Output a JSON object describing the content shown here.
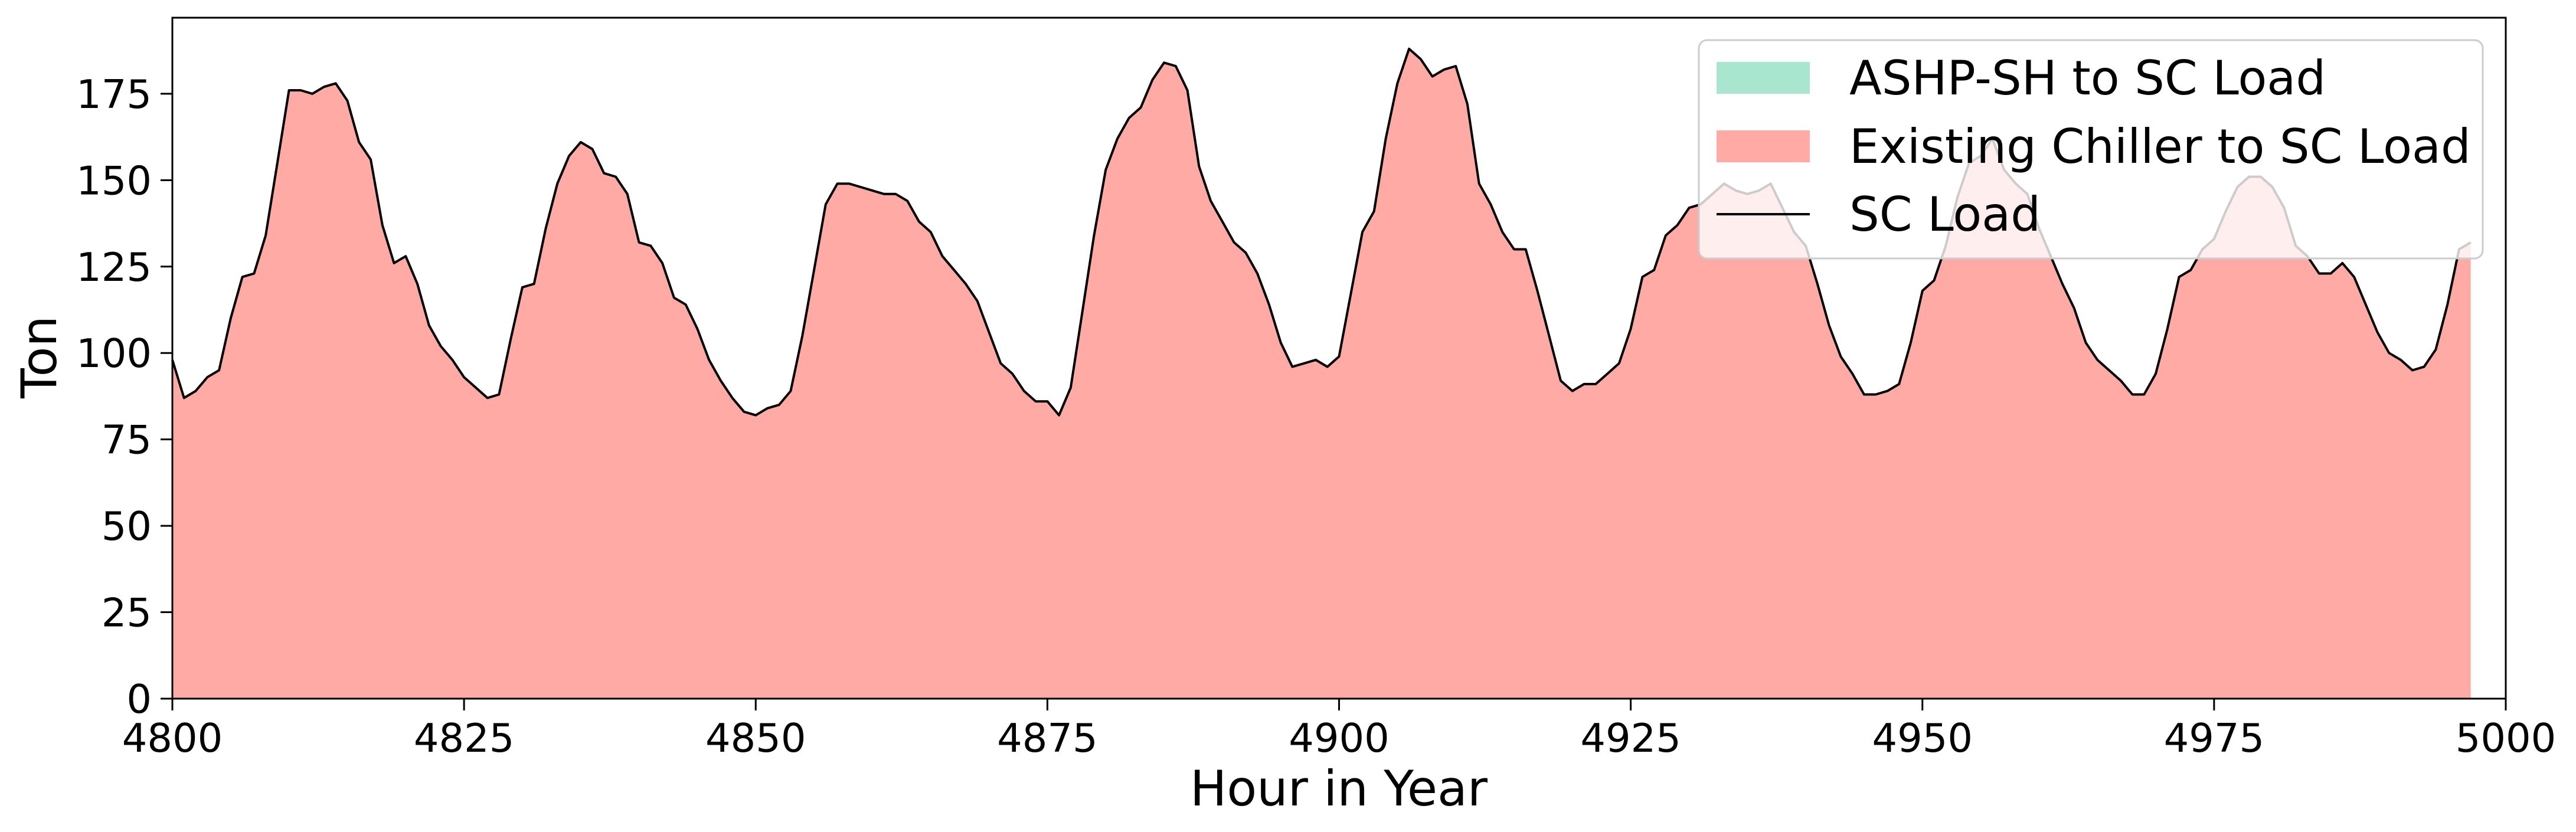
{
  "chart_data": {
    "type": "area",
    "xlabel": "Hour in Year",
    "ylabel": "Ton",
    "xlim": [
      4800,
      5000
    ],
    "ylim": [
      0,
      197
    ],
    "xticks": [
      "4800",
      "4825",
      "4850",
      "4875",
      "4900",
      "4925",
      "4950",
      "4975",
      "5000"
    ],
    "yticks": [
      "0",
      "25",
      "50",
      "75",
      "100",
      "125",
      "150",
      "175"
    ],
    "grid": false,
    "legend_position": "top-right",
    "series": [
      {
        "name": "ASHP-SH to SC Load",
        "kind": "stacked-area",
        "color": "#a8e6cf",
        "values": "all zero"
      },
      {
        "name": "Existing Chiller to SC Load",
        "kind": "stacked-area",
        "color": "#ffaaa5",
        "values": "equal to SC Load"
      },
      {
        "name": "SC Load",
        "kind": "line",
        "color": "#000000",
        "x_start": 4800,
        "x_step": 1,
        "values": [
          98,
          87,
          89,
          93,
          95,
          110,
          122,
          123,
          134,
          155,
          176,
          176,
          175,
          177,
          178,
          173,
          161,
          156,
          137,
          126,
          128,
          120,
          108,
          102,
          98,
          93,
          90,
          87,
          88,
          104,
          119,
          120,
          136,
          149,
          157,
          161,
          159,
          152,
          151,
          146,
          132,
          131,
          126,
          116,
          114,
          107,
          98,
          92,
          87,
          83,
          82,
          84,
          85,
          89,
          105,
          124,
          143,
          149,
          149,
          148,
          147,
          146,
          146,
          144,
          138,
          135,
          128,
          124,
          120,
          115,
          106,
          97,
          94,
          89,
          86,
          86,
          82,
          90,
          112,
          134,
          153,
          162,
          168,
          171,
          179,
          184,
          183,
          176,
          154,
          144,
          138,
          132,
          129,
          123,
          114,
          103,
          96,
          97,
          98,
          96,
          99,
          117,
          135,
          141,
          162,
          178,
          188,
          185,
          180,
          182,
          183,
          172,
          149,
          143,
          135,
          130,
          130,
          118,
          105,
          92,
          89,
          91,
          91,
          94,
          97,
          107,
          122,
          124,
          134,
          137,
          142,
          143,
          146,
          149,
          147,
          146,
          147,
          149,
          142,
          135,
          131,
          120,
          108,
          99,
          94,
          88,
          88,
          89,
          91,
          103,
          118,
          121,
          131,
          145,
          155,
          157,
          162,
          153,
          149,
          146,
          136,
          128,
          120,
          113,
          103,
          98,
          95,
          92,
          88,
          88,
          94,
          107,
          122,
          124,
          130,
          133,
          141,
          148,
          151,
          151,
          148,
          142,
          131,
          128,
          123,
          123,
          126,
          122,
          114,
          106,
          100,
          98,
          95,
          96,
          101,
          114,
          130,
          132
        ]
      }
    ]
  }
}
